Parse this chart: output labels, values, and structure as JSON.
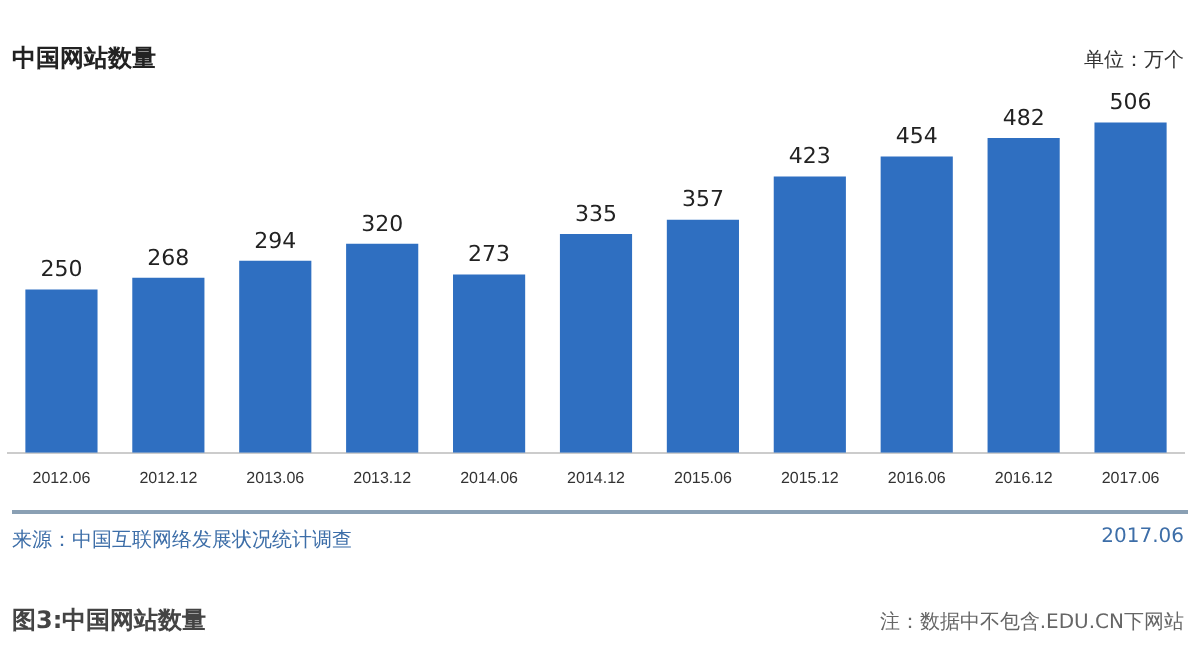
{
  "chart_data": {
    "type": "bar",
    "title": "中国网站数量",
    "categories": [
      "2012.06",
      "2012.12",
      "2013.06",
      "2013.12",
      "2014.06",
      "2014.12",
      "2015.06",
      "2015.12",
      "2016.06",
      "2016.12",
      "2017.06"
    ],
    "values": [
      250,
      268,
      294,
      320,
      273,
      335,
      357,
      423,
      454,
      482,
      506
    ],
    "color": "#2f6fc1",
    "data_labels": true,
    "grid": false,
    "legend": false,
    "annotations": [
      "单位：万个",
      "来源：中国互联网络发展状况统计调查",
      "2017.06",
      "图3:中国网站数量",
      "注：数据中不包含.EDU.CN下网站"
    ]
  }
}
